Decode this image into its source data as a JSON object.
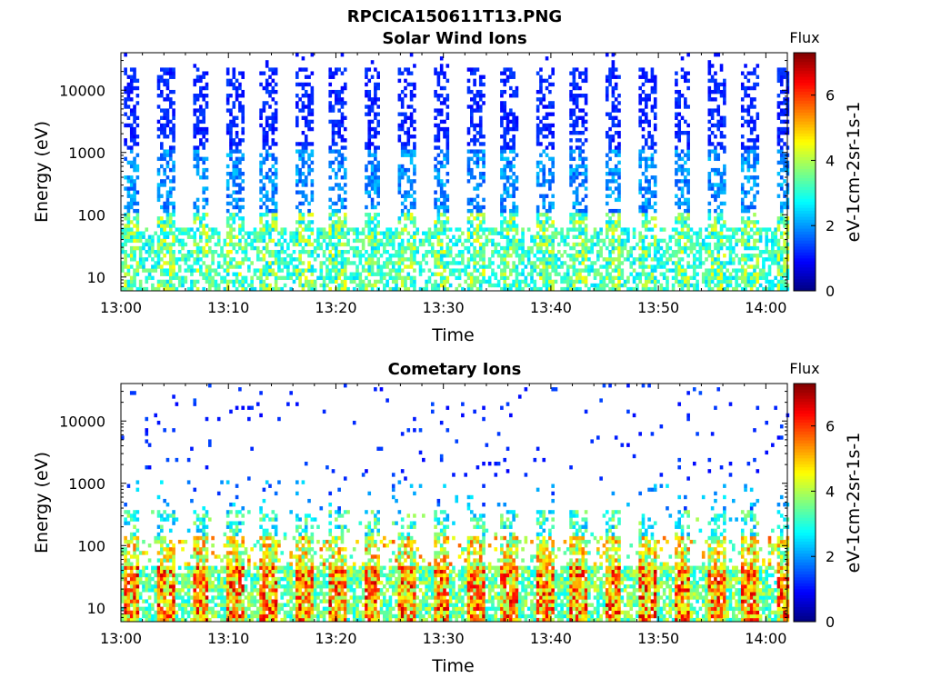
{
  "page_title": "RPCICA150611T13.PNG",
  "chart_data": [
    {
      "type": "heatmap",
      "title": "Solar Wind Ions",
      "xlabel": "Time",
      "ylabel": "Energy (eV)",
      "x_ticks": [
        "13:00",
        "13:10",
        "13:20",
        "13:30",
        "13:40",
        "13:50",
        "14:00"
      ],
      "x_range": [
        "13:00",
        "14:02"
      ],
      "y_scale": "log",
      "y_range_eV": [
        6,
        40000
      ],
      "y_ticks": [
        10,
        100,
        1000,
        10000
      ],
      "y_tick_labels": [
        "10",
        "100",
        "1000",
        "10000"
      ],
      "colorbar": {
        "title": "Flux",
        "label": "eV-1cm-2sr-1s-1",
        "range": [
          0,
          7.3
        ],
        "ticks": [
          "0",
          "2",
          "4",
          "6"
        ],
        "colormap": "jet"
      },
      "pattern": "periodic vertical sweeps ~every 3.2 min; flux ~1 at 1000-30000 eV, ~2.5-4 at 10-100 eV",
      "sweep_period_min": 3.2,
      "sweep_start_min": 0.3
    },
    {
      "type": "heatmap",
      "title": "Cometary Ions",
      "xlabel": "Time",
      "ylabel": "Energy (eV)",
      "x_ticks": [
        "13:00",
        "13:10",
        "13:20",
        "13:30",
        "13:40",
        "13:50",
        "14:00"
      ],
      "x_range": [
        "13:00",
        "14:02"
      ],
      "y_scale": "log",
      "y_range_eV": [
        6,
        40000
      ],
      "y_ticks": [
        10,
        100,
        1000,
        10000
      ],
      "y_tick_labels": [
        "10",
        "100",
        "1000",
        "10000"
      ],
      "colorbar": {
        "title": "Flux",
        "label": "eV-1cm-2sr-1s-1",
        "range": [
          0,
          7.3
        ],
        "ticks": [
          "0",
          "2",
          "4",
          "6"
        ],
        "colormap": "jet"
      },
      "pattern": "periodic sweeps; flux 5-7 concentrated below 100 eV, sparse points above 1000 eV",
      "sweep_period_min": 3.2,
      "sweep_start_min": 0.3
    }
  ]
}
